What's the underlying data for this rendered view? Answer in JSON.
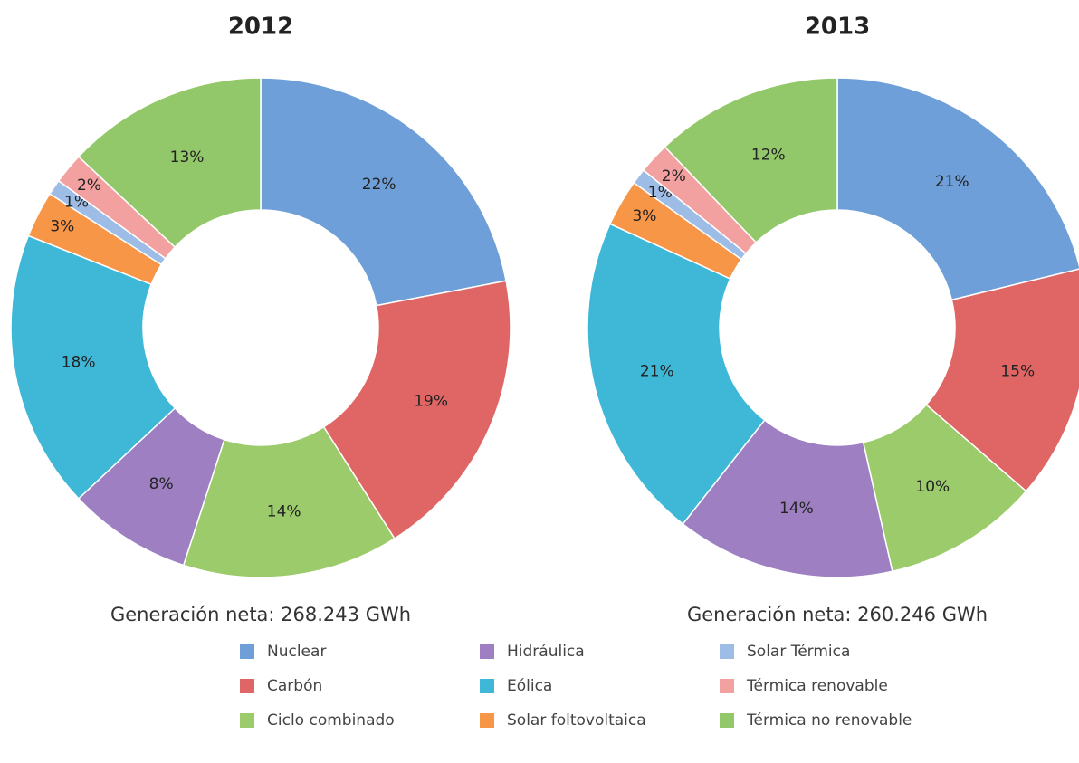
{
  "chart_data": [
    {
      "type": "donut",
      "title": "2012",
      "subtitle": "Generación neta: 268.243 GWh",
      "values": [
        22,
        19,
        14,
        8,
        18,
        3,
        1,
        2,
        13
      ],
      "value_labels": [
        "22%",
        "19%",
        "14%",
        "8%",
        "18%",
        "3%",
        "1%",
        "2%",
        "13%"
      ]
    },
    {
      "type": "donut",
      "title": "2013",
      "subtitle": "Generación neta: 260.246 GWh",
      "values": [
        21,
        15,
        10,
        14,
        21,
        3,
        1,
        2,
        12
      ],
      "value_labels": [
        "21%",
        "15%",
        "10%",
        "14%",
        "21%",
        "3%",
        "1%",
        "2%",
        "12%"
      ]
    }
  ],
  "legend": {
    "categories": [
      "Nuclear",
      "Carbón",
      "Ciclo combinado",
      "Hidráulica",
      "Eólica",
      "Solar foltovoltaica",
      "Solar Térmica",
      "Térmica renovable",
      "Térmica no renovable"
    ],
    "colors": [
      "#6f9fd8",
      "#e06666",
      "#9bcb6b",
      "#9d7fc2",
      "#3fb8d8",
      "#f79646",
      "#9dbde6",
      "#f2a0a0",
      "#93c86a"
    ]
  }
}
